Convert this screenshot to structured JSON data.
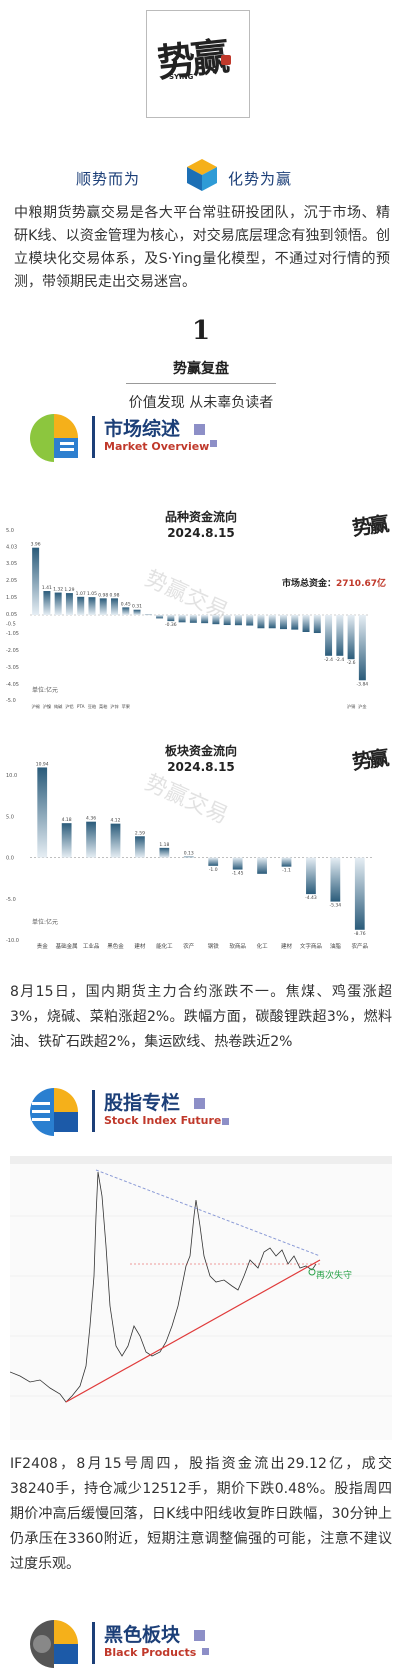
{
  "header": {
    "logo_text": "势赢",
    "logo_sub": "SYING",
    "slogan_left": "顺势而为",
    "slogan_right": "化势为赢"
  },
  "intro": "中粮期货势赢交易是各大平台常驻研投团队，沉于市场、精研K线、以资金管理为核心，对交易底层理念有独到领悟。创立模块化交易体系，及S·Ying量化模型，不通过对行情的预测，带领期民走出交易迷宫。",
  "recap": {
    "number": "1",
    "title": "势赢复盘",
    "subtitle": "价值发现 从未辜负读者"
  },
  "sections": {
    "market": {
      "title": "市场综述",
      "en": "Market Overview"
    },
    "index": {
      "title": "股指专栏",
      "en": "Stock Index Futures"
    },
    "black": {
      "title": "黑色板块",
      "en": "Black Products"
    }
  },
  "chart_data": [
    {
      "type": "bar",
      "title": "品种资金流向",
      "subtitle": "2024.8.15",
      "total_label": "市场总资金：",
      "total_value": "2710.67亿",
      "unit_note": "单位:亿元",
      "ylim": [
        -5.0,
        5.0
      ],
      "yticks": [
        "5.0",
        "4.03",
        "3.05",
        "2.05",
        "1.05",
        "0.05",
        "-0.5",
        "-1.05",
        "-2.05",
        "-3.05",
        "-4.05",
        "-5.0"
      ],
      "ytick_values": [
        5.0,
        4.03,
        3.05,
        2.05,
        1.05,
        0.05,
        -0.5,
        -1.05,
        -2.05,
        -3.05,
        -4.05,
        -5.0
      ],
      "categories": [
        "沪锡",
        "沪镍",
        "纯碱",
        "沪铝",
        "PTA",
        "豆粕",
        "菜粕",
        "沪锌",
        "苹果",
        "",
        "",
        "",
        "",
        "",
        "",
        "",
        "",
        "",
        "",
        "",
        "",
        "",
        "",
        "",
        "",
        "",
        "",
        "",
        "沪铜",
        "沪金"
      ],
      "values": [
        3.96,
        1.41,
        1.32,
        1.29,
        1.07,
        1.05,
        0.98,
        0.98,
        0.45,
        0.31,
        0.02,
        -0.2,
        -0.36,
        -0.43,
        -0.46,
        -0.48,
        -0.54,
        -0.59,
        -0.6,
        -0.62,
        -0.78,
        -0.78,
        -0.83,
        -0.86,
        -1.0,
        -1.06,
        -2.4,
        -2.4,
        -2.6,
        -3.84
      ],
      "value_labels": [
        "3.96",
        "1.41",
        "1.32",
        "1.29",
        "1.07",
        "1.05",
        "0.98",
        "0.98",
        "0.45",
        "0.31",
        "",
        "",
        "-0.36",
        "",
        "",
        "",
        "",
        "",
        "",
        "",
        "",
        "",
        "",
        "",
        "",
        "",
        "-2.4",
        "-2.4",
        "-2.6",
        "-3.84"
      ]
    },
    {
      "type": "bar",
      "title": "板块资金流向",
      "subtitle": "2024.8.15",
      "unit_note": "单位:亿元",
      "ylim": [
        -10.0,
        15.0
      ],
      "yticks": [
        "15.0",
        "10.0",
        "5.0",
        "0.0",
        "-5.0",
        "-10.0"
      ],
      "ytick_values": [
        15.0,
        10.0,
        5.0,
        0.0,
        -5.0,
        -10.0
      ],
      "categories": [
        "贵金",
        "基础金属",
        "工业品",
        "黑色金",
        "建材",
        "能化工",
        "农产",
        "钢铁",
        "软商品",
        "化工",
        "建材",
        "文字商品",
        "油脂",
        "农产品"
      ],
      "values": [
        10.94,
        4.18,
        4.36,
        4.12,
        2.59,
        1.18,
        0.13,
        -1.0,
        -1.45,
        -1.97,
        -1.1,
        -4.43,
        -5.34,
        -8.76
      ],
      "value_labels": [
        "10.94",
        "4.18",
        "4.36",
        "4.12",
        "2.59",
        "1.18",
        "0.13",
        "-1.0",
        "-1.45",
        "",
        "-1.1",
        "-4.43",
        "-5.34",
        "-8.76"
      ]
    }
  ],
  "market_summary": "8月15日，国内期货主力合约涨跌不一。焦煤、鸡蛋涨超3%，烧碱、菜粕涨超2%。跌幅方面，碳酸锂跌超3%，燃料油、铁矿石跌超2%，集运欧线、热卷跌近2%",
  "index_chart": {
    "annotation": "再次失守"
  },
  "index_summary": "IF2408，8月15号周四，股指资金流出29.12亿，成交38240手，持仓减少12512手，期价下跌0.48%。股指周四期价冲高后缓慢回落，日K线中阳线收复昨日跌幅，30分钟上仍承压在3360附近，短期注意调整偏强的可能，注意不建议过度乐观。",
  "colors": {
    "brand_blue": "#1c3f78",
    "accent_red": "#c0392b",
    "bar_top": "#2a5b7a",
    "bar_bottom": "#e6eef4"
  }
}
